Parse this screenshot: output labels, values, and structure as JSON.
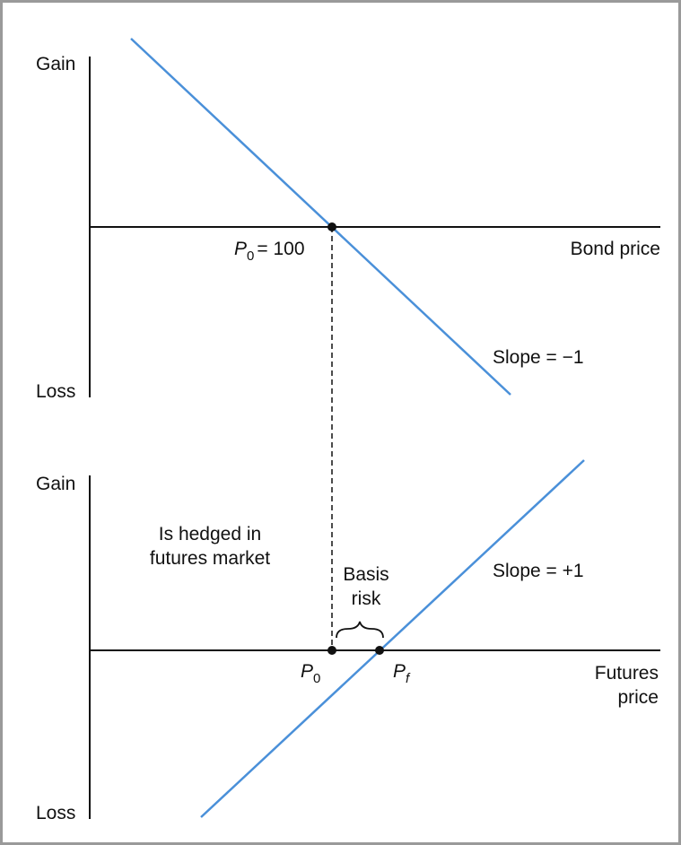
{
  "colors": {
    "line": "#4a90d9",
    "axis": "#111111",
    "border": "#9a9a9a"
  },
  "top_panel": {
    "y_label_top": "Gain",
    "y_label_bottom": "Loss",
    "x_label": "Bond price",
    "point_symbol": "P",
    "point_subscript": "0",
    "point_value": "= 100",
    "slope_label": "Slope = −1"
  },
  "bottom_panel": {
    "y_label_top": "Gain",
    "y_label_bottom": "Loss",
    "x_label_line1": "Futures",
    "x_label_line2": "price",
    "hedge_line1": "Is hedged in",
    "hedge_line2": "futures market",
    "basis_line1": "Basis",
    "basis_line2": "risk",
    "p0_symbol": "P",
    "p0_subscript": "0",
    "pf_symbol": "P",
    "pf_subscript": "f",
    "slope_label": "Slope = +1"
  }
}
